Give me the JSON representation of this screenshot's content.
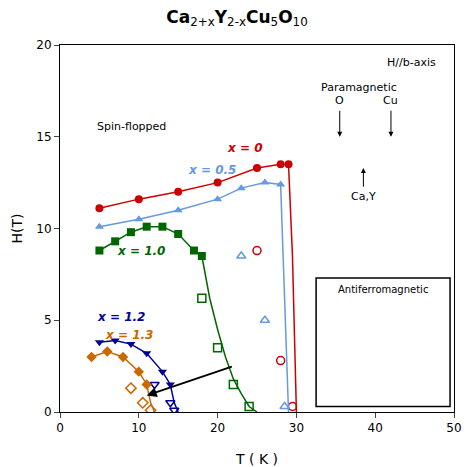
{
  "chart_data": {
    "type": "line",
    "title": [
      "Ca",
      "2+x",
      "Y",
      "2-x",
      "Cu",
      "5",
      "O",
      "10"
    ],
    "xlabel": "T ( K )",
    "ylabel": "H(T)",
    "xlim": [
      0,
      50
    ],
    "ylim": [
      0,
      20
    ],
    "xticks": [
      0,
      10,
      20,
      30,
      40,
      50
    ],
    "yticks": [
      0,
      5,
      10,
      15,
      20
    ],
    "grid": false,
    "series": [
      {
        "name": "x = 0",
        "color": "#cc0000",
        "marker": "circle",
        "x": [
          5,
          10,
          15,
          20,
          25,
          28,
          29
        ],
        "values": [
          11.1,
          11.6,
          12.0,
          12.5,
          13.3,
          13.5,
          13.5
        ],
        "drop_x": [
          29,
          29.5,
          30
        ],
        "drop_values": [
          13.5,
          8.5,
          0.0
        ],
        "open_x": [
          25,
          28,
          29.5
        ],
        "open_values": [
          8.8,
          2.8,
          0.3
        ],
        "label_x": 21,
        "label_y": 13.9
      },
      {
        "name": "x = 0.5",
        "color": "#6699dd",
        "marker": "triangle-up",
        "x": [
          5,
          10,
          15,
          20,
          23,
          26,
          28
        ],
        "values": [
          10.1,
          10.5,
          11.0,
          11.6,
          12.2,
          12.5,
          12.4
        ],
        "drop_x": [
          28,
          28.5,
          29
        ],
        "drop_values": [
          12.4,
          6.0,
          0.0
        ],
        "open_x": [
          23,
          26,
          28.5
        ],
        "open_values": [
          8.5,
          5.0,
          0.3
        ],
        "label_x": 16,
        "label_y": 12.7
      },
      {
        "name": "x = 1.0",
        "color": "#006600",
        "marker": "square",
        "x": [
          5,
          7,
          9,
          11,
          13,
          15,
          17,
          18
        ],
        "values": [
          8.8,
          9.3,
          9.8,
          10.1,
          10.1,
          9.7,
          8.8,
          8.5
        ],
        "drop_x": [
          18,
          19,
          20,
          21,
          22,
          23,
          24,
          25
        ],
        "drop_values": [
          8.5,
          6.2,
          4.5,
          3.0,
          1.8,
          1.0,
          0.3,
          0.0
        ],
        "open_x": [
          18,
          20,
          22,
          24
        ],
        "open_values": [
          6.2,
          3.5,
          1.5,
          0.3
        ],
        "label_x": 7,
        "label_y": 8.3
      },
      {
        "name": "x = 1.2",
        "color": "#000099",
        "marker": "triangle-down",
        "x": [
          5,
          7,
          9,
          11,
          13,
          14
        ],
        "values": [
          3.8,
          3.9,
          3.7,
          3.2,
          2.2,
          1.5
        ],
        "drop_x": [
          14,
          14.5,
          15
        ],
        "drop_values": [
          1.5,
          0.5,
          0.0
        ],
        "open_x": [
          12,
          14,
          14.5
        ],
        "open_values": [
          1.5,
          0.5,
          0.1
        ],
        "label_x": 4.5,
        "label_y": 4.7
      },
      {
        "name": "x = 1.3",
        "color": "#cc6600",
        "marker": "diamond",
        "x": [
          4,
          6,
          8,
          10,
          11
        ],
        "values": [
          3.0,
          3.3,
          3.0,
          2.2,
          1.5
        ],
        "drop_x": [
          11,
          11.5,
          12
        ],
        "drop_values": [
          1.5,
          0.5,
          0.0
        ],
        "open_x": [
          9,
          10.5,
          11.5
        ],
        "open_values": [
          1.3,
          0.5,
          0.1
        ],
        "label_x": 5.5,
        "label_y": 3.7
      }
    ],
    "arrows": [
      {
        "from": [
          22,
          2.5
        ],
        "to": [
          11,
          0.9
        ]
      }
    ],
    "annotations": [
      {
        "text": "Spin-flopped",
        "x": 4.5,
        "y": 16.0
      },
      {
        "text": "Paramagnetic",
        "x": 38,
        "y": 17.2
      },
      {
        "text": "H//b-axis",
        "x": 48,
        "y": 19.5
      },
      {
        "text": "O",
        "x": 35.5,
        "y": 16.5,
        "arrow_to": [
          35.5,
          15.0
        ]
      },
      {
        "text": "Cu",
        "x": 42,
        "y": 16.5,
        "arrow_to": [
          42,
          15.0
        ]
      },
      {
        "text": "Ca,Y",
        "x": 38.5,
        "y": 12.2,
        "arrow_to": [
          38.5,
          13.3
        ]
      }
    ],
    "box": {
      "text": "Antiferromagnetic",
      "x": 32.5,
      "y": 0.3,
      "width": 17,
      "height": 7.0
    }
  }
}
